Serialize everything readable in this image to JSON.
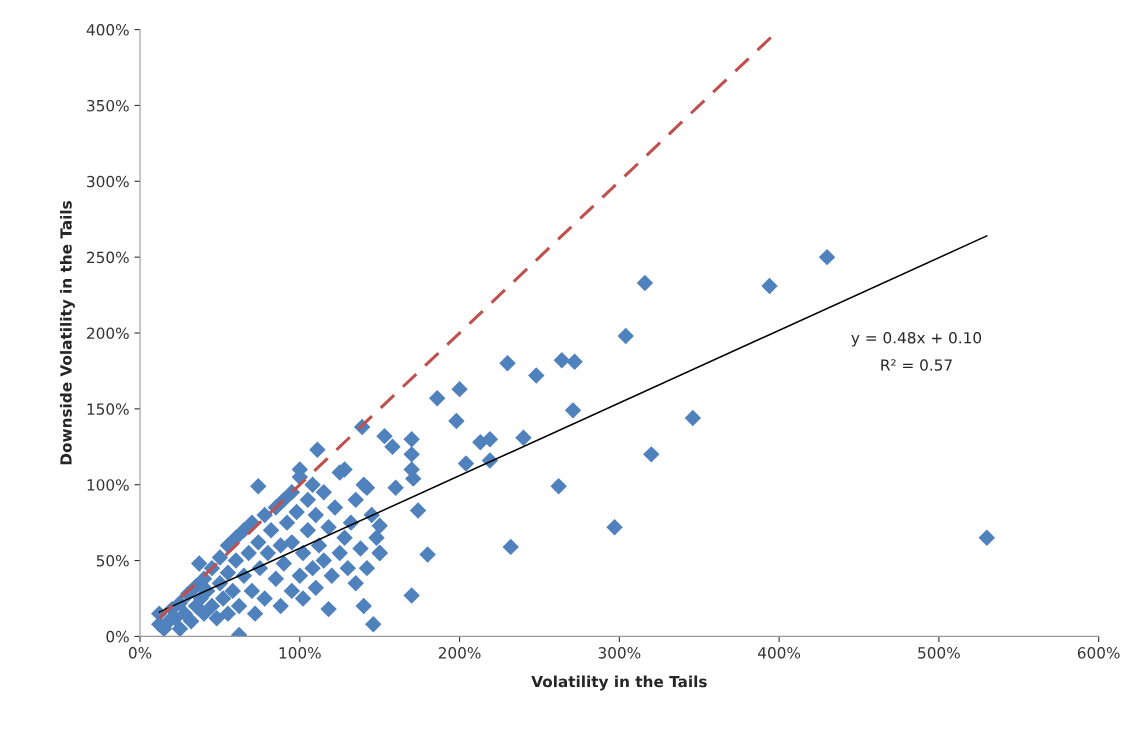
{
  "chart_data": {
    "type": "scatter",
    "xlabel": "Volatility in the Tails",
    "ylabel": "Downside Volatility in the Tails",
    "xlim": [
      0,
      6
    ],
    "ylim": [
      0,
      4
    ],
    "xticks": [
      {
        "value": 0,
        "label": "0%"
      },
      {
        "value": 1,
        "label": "100%"
      },
      {
        "value": 2,
        "label": "200%"
      },
      {
        "value": 3,
        "label": "300%"
      },
      {
        "value": 4,
        "label": "400%"
      },
      {
        "value": 5,
        "label": "500%"
      },
      {
        "value": 6,
        "label": "600%"
      }
    ],
    "yticks": [
      {
        "value": 0,
        "label": "0%"
      },
      {
        "value": 0.5,
        "label": "50%"
      },
      {
        "value": 1,
        "label": "100%"
      },
      {
        "value": 1.5,
        "label": "150%"
      },
      {
        "value": 2,
        "label": "200%"
      },
      {
        "value": 2.5,
        "label": "250%"
      },
      {
        "value": 3,
        "label": "300%"
      },
      {
        "value": 3.5,
        "label": "350%"
      },
      {
        "value": 4,
        "label": "400%"
      }
    ],
    "grid": false,
    "legend": false,
    "annotations": [
      "y = 0.48x + 0.10",
      "R² = 0.57"
    ],
    "series": [
      {
        "color": "#4f81bd",
        "marker": "diamond",
        "x": [
          5.3,
          4.3,
          3.94,
          3.16,
          3.04,
          2.64,
          2.72,
          2.71,
          3.2,
          3.46,
          2.62,
          2.97,
          2.32,
          2.48,
          2.3,
          2.0,
          1.98,
          2.04,
          2.13,
          2.19,
          2.19,
          2.4,
          1.86,
          1.74,
          1.8,
          1.46,
          1.4,
          1.18,
          0.62,
          1.7,
          1.71,
          1.6,
          1.58,
          1.53,
          1.39,
          1.11,
          1.5,
          1.5,
          1.42,
          1.28,
          0.74,
          0.37,
          1.0,
          1.7,
          1.7,
          1.7,
          0.12,
          0.12,
          0.15,
          0.18,
          0.2,
          0.22,
          0.25,
          0.25,
          0.28,
          0.3,
          0.32,
          0.35,
          0.35,
          0.38,
          0.4,
          0.4,
          0.42,
          0.45,
          0.45,
          0.48,
          0.5,
          0.5,
          0.52,
          0.55,
          0.55,
          0.55,
          0.58,
          0.6,
          0.6,
          0.62,
          0.65,
          0.65,
          0.68,
          0.7,
          0.7,
          0.72,
          0.74,
          0.75,
          0.78,
          0.78,
          0.8,
          0.82,
          0.85,
          0.85,
          0.88,
          0.88,
          0.9,
          0.9,
          0.92,
          0.95,
          0.95,
          0.95,
          0.98,
          1.0,
          1.0,
          1.02,
          1.02,
          1.05,
          1.05,
          1.08,
          1.08,
          1.1,
          1.1,
          1.12,
          1.15,
          1.15,
          1.18,
          1.2,
          1.22,
          1.25,
          1.25,
          1.28,
          1.3,
          1.32,
          1.35,
          1.35,
          1.38,
          1.4,
          1.42,
          1.45,
          1.48,
          1.5
        ],
        "values": [
          0.65,
          2.5,
          2.31,
          2.33,
          1.98,
          1.82,
          1.81,
          1.49,
          1.2,
          1.44,
          0.99,
          0.72,
          0.59,
          1.72,
          1.8,
          1.63,
          1.42,
          1.14,
          1.28,
          1.3,
          1.16,
          1.31,
          1.57,
          0.83,
          0.54,
          0.08,
          0.2,
          0.18,
          0.01,
          0.27,
          1.04,
          0.98,
          1.25,
          1.32,
          1.38,
          1.23,
          0.73,
          0.55,
          0.98,
          1.1,
          0.99,
          0.48,
          1.1,
          1.3,
          1.2,
          1.1,
          0.15,
          0.08,
          0.05,
          0.1,
          0.18,
          0.12,
          0.05,
          0.22,
          0.15,
          0.28,
          0.1,
          0.2,
          0.33,
          0.25,
          0.15,
          0.38,
          0.3,
          0.45,
          0.2,
          0.12,
          0.35,
          0.52,
          0.25,
          0.6,
          0.15,
          0.42,
          0.3,
          0.65,
          0.5,
          0.2,
          0.4,
          0.7,
          0.55,
          0.3,
          0.75,
          0.15,
          0.62,
          0.45,
          0.8,
          0.25,
          0.55,
          0.7,
          0.85,
          0.38,
          0.2,
          0.6,
          0.9,
          0.48,
          0.75,
          0.3,
          0.95,
          0.62,
          0.82,
          0.4,
          1.05,
          0.55,
          0.25,
          0.9,
          0.7,
          0.45,
          1.0,
          0.8,
          0.32,
          0.6,
          0.95,
          0.5,
          0.72,
          0.4,
          0.85,
          0.55,
          1.08,
          0.65,
          0.45,
          0.75,
          0.35,
          0.9,
          0.58,
          1.0,
          0.45,
          0.8,
          0.65,
          0.55
        ]
      },
      {
        "type": "line",
        "color": "#000000",
        "marker": "none",
        "line_style": "solid",
        "x": [
          0.12,
          5.3
        ],
        "values": [
          0.16,
          2.64
        ]
      },
      {
        "type": "line",
        "color": "#c0504d",
        "marker": "none",
        "line_style": "dashed",
        "x": [
          0.12,
          4.0
        ],
        "values": [
          0.12,
          4.0
        ]
      }
    ]
  }
}
